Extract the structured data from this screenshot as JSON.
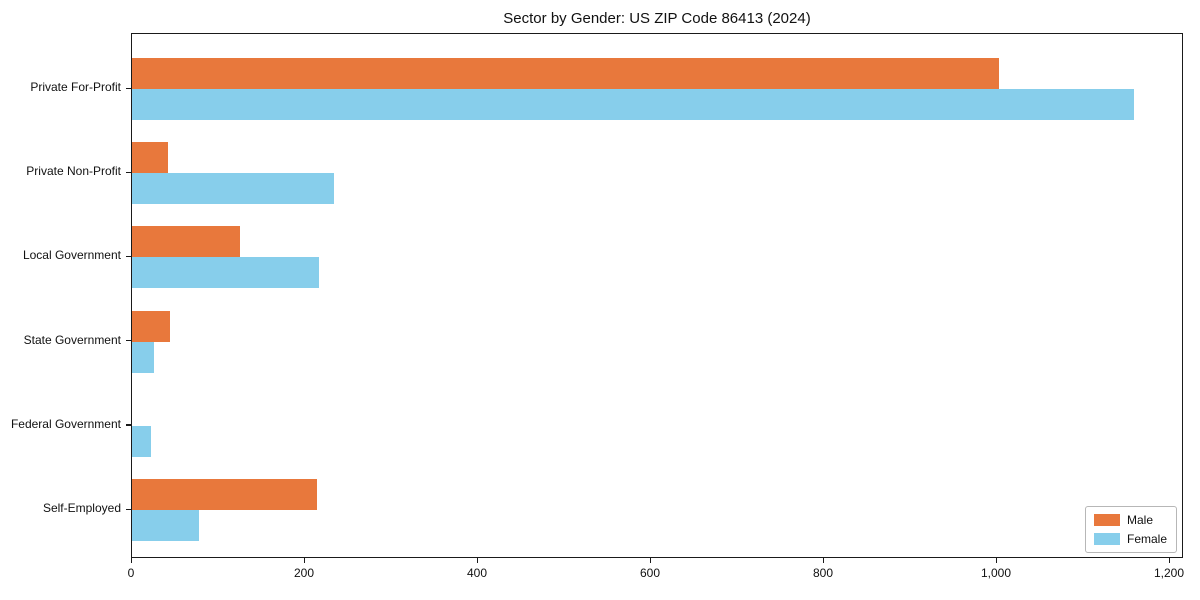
{
  "title": "Sector by Gender: US ZIP Code 86413 (2024)",
  "chart_data": {
    "type": "bar",
    "orientation": "horizontal",
    "title": "Sector by Gender: US ZIP Code 86413 (2024)",
    "xlabel": "",
    "ylabel": "",
    "categories": [
      "Private For-Profit",
      "Private Non-Profit",
      "Local Government",
      "State Government",
      "Federal Government",
      "Self-Employed"
    ],
    "series": [
      {
        "name": "Male",
        "color": "#E8783C",
        "values": [
          1002,
          42,
          125,
          44,
          0,
          214
        ]
      },
      {
        "name": "Female",
        "color": "#87CEEB",
        "values": [
          1158,
          234,
          216,
          25,
          22,
          78
        ]
      }
    ],
    "xlim": [
      0,
      1216
    ],
    "x_ticks": [
      {
        "value": 0,
        "label": "0"
      },
      {
        "value": 200,
        "label": "200"
      },
      {
        "value": 400,
        "label": "400"
      },
      {
        "value": 600,
        "label": "600"
      },
      {
        "value": 800,
        "label": "800"
      },
      {
        "value": 1000,
        "label": "1,000"
      },
      {
        "value": 1200,
        "label": "1,200"
      }
    ],
    "grid": false,
    "legend_position": "lower right"
  }
}
